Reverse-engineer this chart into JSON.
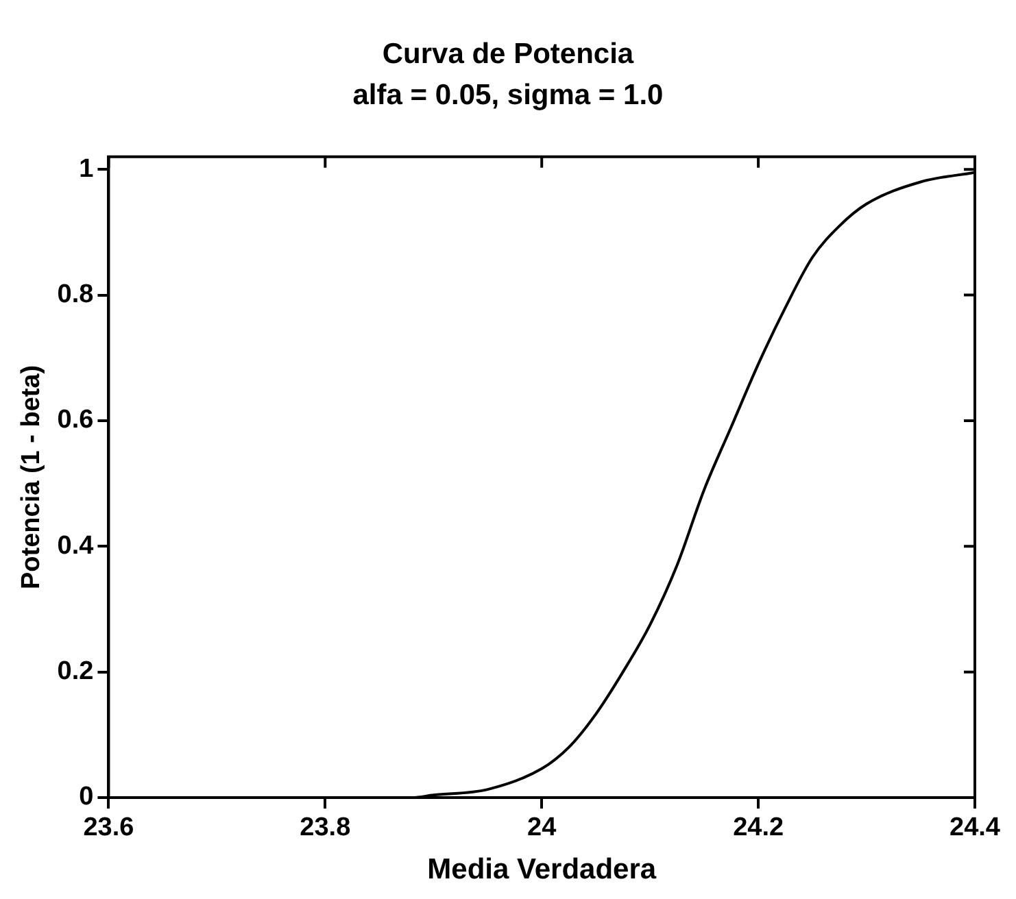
{
  "chart_data": {
    "type": "line",
    "title": "Curva de Potencia",
    "subtitle": "alfa = 0.05, sigma = 1.0",
    "xlabel": "Media Verdadera",
    "ylabel": "Potencia (1 - beta)",
    "x": [
      23.6,
      23.7,
      23.8,
      23.88,
      23.9,
      23.95,
      24.0,
      24.025,
      24.05,
      24.075,
      24.1,
      24.125,
      24.15,
      24.175,
      24.2,
      24.225,
      24.25,
      24.275,
      24.3,
      24.35,
      24.4
    ],
    "series": [
      {
        "color": "#000000",
        "values": [
          0,
          0,
          0,
          0,
          0.004,
          0.013,
          0.046,
          0.08,
          0.133,
          0.2,
          0.275,
          0.37,
          0.49,
          0.59,
          0.69,
          0.78,
          0.86,
          0.91,
          0.945,
          0.98,
          0.995
        ]
      }
    ],
    "xlim": [
      23.6,
      24.4
    ],
    "xticks": [
      23.6,
      23.8,
      24,
      24.2,
      24.4
    ],
    "ylim": [
      0,
      1.02
    ],
    "yticks": [
      0,
      0.2,
      0.4,
      0.6,
      0.8,
      1
    ],
    "grid": false,
    "legend": false,
    "marker": "none",
    "line_style": "solid"
  }
}
